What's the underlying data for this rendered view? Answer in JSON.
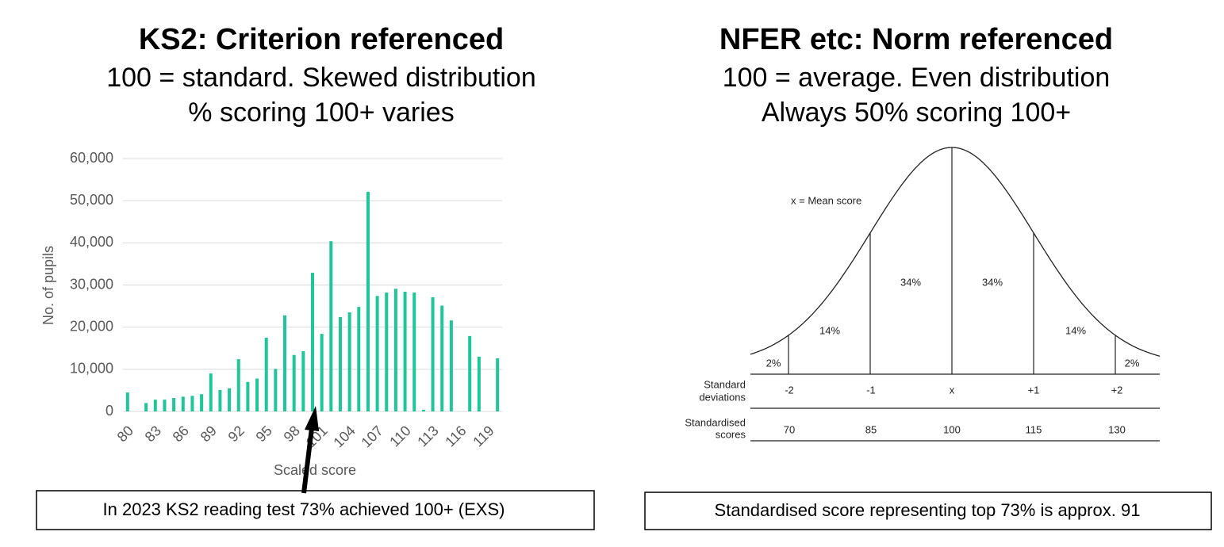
{
  "panels": [
    {
      "heading": "KS2: Criterion referenced",
      "subtitle": [
        "100 = standard. Skewed distribution",
        "% scoring 100+ varies"
      ],
      "note": "In 2023 KS2 reading test 73% achieved 100+ (EXS)"
    },
    {
      "heading": "NFER etc: Norm referenced",
      "subtitle": [
        "100 = average. Even distribution",
        "Always 50% scoring 100+"
      ],
      "note": "Standardised score representing top 73% is approx. 91"
    }
  ],
  "chart_data": {
    "type": "bar",
    "x_label": "Scaled score",
    "y_label": "No. of pupils",
    "categories": [
      80,
      null,
      null,
      83,
      null,
      null,
      86,
      null,
      null,
      89,
      null,
      null,
      92,
      null,
      null,
      95,
      null,
      null,
      98,
      null,
      null,
      101,
      null,
      null,
      104,
      null,
      null,
      107,
      null,
      null,
      110,
      null,
      null,
      113,
      null,
      null,
      116,
      null,
      null,
      119,
      null
    ],
    "values": [
      4500,
      0,
      2000,
      2800,
      2800,
      3200,
      3500,
      3700,
      4100,
      9000,
      5100,
      5500,
      12400,
      7000,
      7800,
      17500,
      10100,
      22800,
      13400,
      14300,
      32900,
      18400,
      40400,
      22400,
      23500,
      24800,
      52100,
      27400,
      28200,
      29100,
      28400,
      28200,
      400,
      27100,
      25100,
      21600,
      0,
      17900,
      13000,
      0,
      12600
    ],
    "color": "#1ec699",
    "ylim": [
      0,
      60000
    ],
    "yticks": [
      0,
      {
        "value": 10000,
        "label": "10,000"
      },
      {
        "value": 20000,
        "label": "20,000"
      },
      {
        "value": 30000,
        "label": "30,000"
      },
      {
        "value": 40000,
        "label": "40,000"
      },
      {
        "value": 50000,
        "label": "50,000"
      },
      {
        "value": 60000,
        "label": "60,000"
      }
    ],
    "grid": true
  },
  "diagram": {
    "legend": "x = Mean score",
    "percentages": [
      "2%",
      "14%",
      "34%",
      "34%",
      "14%",
      "2%"
    ],
    "row_labels": [
      [
        "Standard",
        "deviations"
      ],
      [
        "Standardised",
        "scores"
      ]
    ],
    "deviations": [
      "-2",
      "-1",
      "x",
      "+1",
      "+2"
    ],
    "scores": [
      70,
      85,
      100,
      115,
      130
    ]
  }
}
